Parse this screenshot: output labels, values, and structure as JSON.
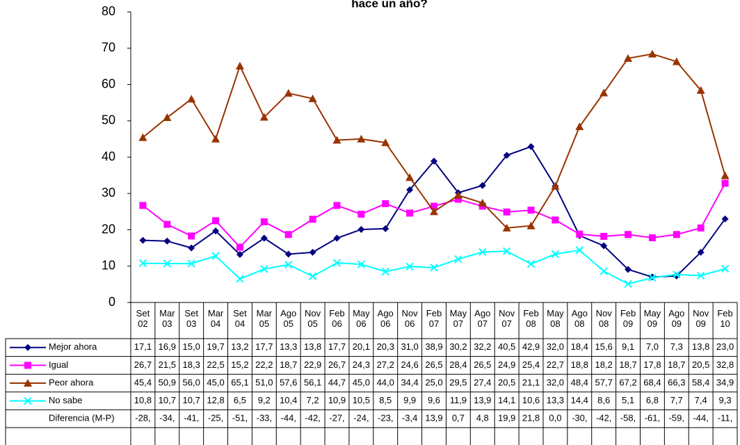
{
  "chart_data": {
    "type": "line",
    "title": "hace un año?",
    "categories": [
      "Set 02",
      "Mar 03",
      "Set 03",
      "Mar 04",
      "Set 04",
      "Mar 05",
      "Ago 05",
      "Nov 05",
      "Feb 06",
      "May 06",
      "Ago 06",
      "Nov 06",
      "Feb 07",
      "May 07",
      "Ago 07",
      "Nov 07",
      "Feb 08",
      "May 08",
      "Ago 08",
      "Nov 08",
      "Feb 09",
      "May 09",
      "Ago 09",
      "Nov 09",
      "Feb 10"
    ],
    "ylim": [
      0,
      80
    ],
    "yticks": [
      0,
      10,
      20,
      30,
      40,
      50,
      60,
      70,
      80
    ],
    "series": [
      {
        "name": "Mejor ahora",
        "color": "#000080",
        "marker": "diamond",
        "values": [
          17.1,
          16.9,
          15.0,
          19.7,
          13.2,
          17.7,
          13.3,
          13.8,
          17.7,
          20.1,
          20.3,
          31.0,
          38.9,
          30.2,
          32.2,
          40.5,
          42.9,
          32.0,
          18.4,
          15.6,
          9.1,
          7.0,
          7.3,
          13.8,
          23.0
        ],
        "value_labels": [
          "17,1",
          "16,9",
          "15,0",
          "19,7",
          "13,2",
          "17,7",
          "13,3",
          "13,8",
          "17,7",
          "20,1",
          "20,3",
          "31,0",
          "38,9",
          "30,2",
          "32,2",
          "40,5",
          "42,9",
          "32,0",
          "18,4",
          "15,6",
          "9,1",
          "7,0",
          "7,3",
          "13,8",
          "23,0"
        ]
      },
      {
        "name": "Igual",
        "color": "#ff00ff",
        "marker": "square",
        "values": [
          26.7,
          21.5,
          18.3,
          22.5,
          15.2,
          22.2,
          18.7,
          22.9,
          26.7,
          24.3,
          27.2,
          24.6,
          26.5,
          28.4,
          26.5,
          24.9,
          25.4,
          22.7,
          18.8,
          18.2,
          18.7,
          17.8,
          18.7,
          20.5,
          32.8
        ],
        "value_labels": [
          "26,7",
          "21,5",
          "18,3",
          "22,5",
          "15,2",
          "22,2",
          "18,7",
          "22,9",
          "26,7",
          "24,3",
          "27,2",
          "24,6",
          "26,5",
          "28,4",
          "26,5",
          "24,9",
          "25,4",
          "22,7",
          "18,8",
          "18,2",
          "18,7",
          "17,8",
          "18,7",
          "20,5",
          "32,8"
        ]
      },
      {
        "name": "Peor ahora",
        "color": "#993300",
        "marker": "triangle",
        "values": [
          45.4,
          50.9,
          56.0,
          45.0,
          65.1,
          51.0,
          57.6,
          56.1,
          44.7,
          45.0,
          44.0,
          34.4,
          25.0,
          29.5,
          27.4,
          20.5,
          21.1,
          32.0,
          48.4,
          57.7,
          67.2,
          68.4,
          66.3,
          58.4,
          34.9
        ],
        "value_labels": [
          "45,4",
          "50,9",
          "56,0",
          "45,0",
          "65,1",
          "51,0",
          "57,6",
          "56,1",
          "44,7",
          "45,0",
          "44,0",
          "34,4",
          "25,0",
          "29,5",
          "27,4",
          "20,5",
          "21,1",
          "32,0",
          "48,4",
          "57,7",
          "67,2",
          "68,4",
          "66,3",
          "58,4",
          "34,9"
        ]
      },
      {
        "name": "No sabe",
        "color": "#00ffff",
        "marker": "x",
        "values": [
          10.8,
          10.7,
          10.7,
          12.8,
          6.5,
          9.2,
          10.4,
          7.2,
          10.9,
          10.5,
          8.5,
          9.9,
          9.6,
          11.9,
          13.9,
          14.1,
          10.6,
          13.3,
          14.4,
          8.6,
          5.1,
          6.8,
          7.7,
          7.4,
          9.3
        ],
        "value_labels": [
          "10,8",
          "10,7",
          "10,7",
          "12,8",
          "6,5",
          "9,2",
          "10,4",
          "7,2",
          "10,9",
          "10,5",
          "8,5",
          "9,9",
          "9,6",
          "11,9",
          "13,9",
          "14,1",
          "10,6",
          "13,3",
          "14,4",
          "8,6",
          "5,1",
          "6,8",
          "7,7",
          "7,4",
          "9,3"
        ]
      }
    ],
    "extra_row": {
      "name": "Diferencia (M-P)",
      "labels": [
        "-28,",
        "-34,",
        "-41,",
        "-25,",
        "-51,",
        "-33,",
        "-44,",
        "-42,",
        "-27,",
        "-24,",
        "-23,",
        "-3,4",
        "13,9",
        "0,7",
        "4,8",
        "19,9",
        "21,8",
        "0,0",
        "-30,",
        "-42,",
        "-58,",
        "-61,",
        "-59,",
        "-44,",
        "-11,"
      ]
    }
  }
}
